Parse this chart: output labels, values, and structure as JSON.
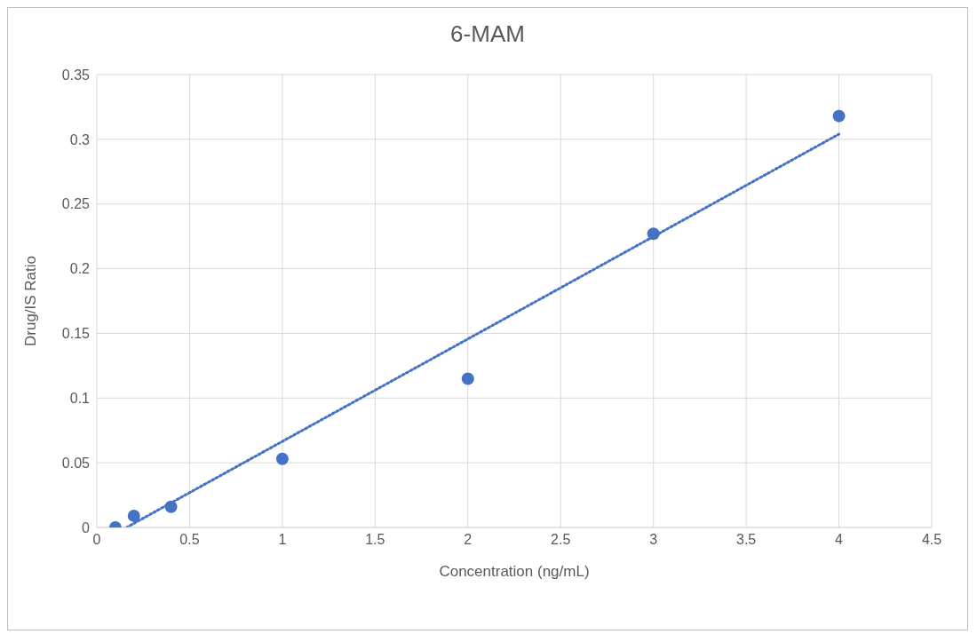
{
  "chart_data": {
    "type": "scatter",
    "title": "6-MAM",
    "xlabel": "Concentration (ng/mL)",
    "ylabel": "Drug/IS Ratio",
    "x": [
      0.1,
      0.2,
      0.4,
      1,
      2,
      3,
      4
    ],
    "series": [
      {
        "color": "#4472c4",
        "marker": "circle",
        "values": [
          0.0,
          0.009,
          0.016,
          0.053,
          0.115,
          0.227,
          0.318
        ]
      },
      {
        "type": "line",
        "color": "#4472c4",
        "marker": "none",
        "line_style": "dotted",
        "x": [
          0.16,
          4
        ],
        "values": [
          0.0,
          0.304
        ]
      }
    ],
    "xlim": [
      0,
      4.5
    ],
    "xticks": [
      0,
      0.5,
      1,
      1.5,
      2,
      2.5,
      3,
      3.5,
      4,
      4.5
    ],
    "ylim": [
      0,
      0.35
    ],
    "yticks": [
      0,
      0.05,
      0.1,
      0.15,
      0.2,
      0.25,
      0.3,
      0.35
    ],
    "grid": true,
    "legend": false
  }
}
